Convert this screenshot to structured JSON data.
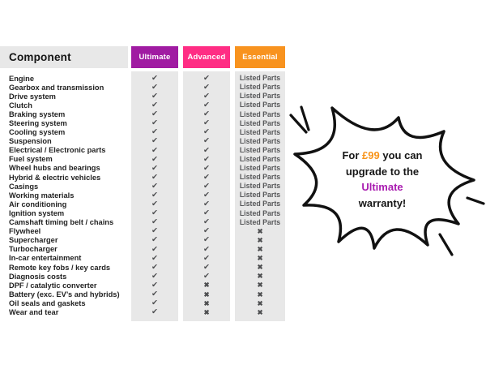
{
  "colors": {
    "ultimate_purple": "#A01BA2",
    "advanced_pink": "#FF2D84",
    "essential_orange": "#F8931F",
    "burst_price_orange": "#F8941A",
    "burst_ultimate_purple": "#A91CB0",
    "column_stripe_gray": "#E8E8E8",
    "mark_gray": "#4D4E50",
    "text_dark": "#161616"
  },
  "table": {
    "header": {
      "component": "Component",
      "plans": [
        {
          "label": "Ultimate",
          "color": "#A01BA2"
        },
        {
          "label": "Advanced",
          "color": "#FF2D84"
        },
        {
          "label": "Essential",
          "color": "#F8931F"
        }
      ]
    },
    "listed_label": "Listed Parts",
    "check_symbol": "✔",
    "cross_symbol": "✖",
    "rows": [
      {
        "component": "Engine",
        "ultimate": "check",
        "advanced": "check",
        "essential": "listed"
      },
      {
        "component": "Gearbox and transmission",
        "ultimate": "check",
        "advanced": "check",
        "essential": "listed"
      },
      {
        "component": "Drive system",
        "ultimate": "check",
        "advanced": "check",
        "essential": "listed"
      },
      {
        "component": "Clutch",
        "ultimate": "check",
        "advanced": "check",
        "essential": "listed"
      },
      {
        "component": "Braking system",
        "ultimate": "check",
        "advanced": "check",
        "essential": "listed"
      },
      {
        "component": "Steering system",
        "ultimate": "check",
        "advanced": "check",
        "essential": "listed"
      },
      {
        "component": "Cooling system",
        "ultimate": "check",
        "advanced": "check",
        "essential": "listed"
      },
      {
        "component": "Suspension",
        "ultimate": "check",
        "advanced": "check",
        "essential": "listed"
      },
      {
        "component": "Electrical / Electronic parts",
        "ultimate": "check",
        "advanced": "check",
        "essential": "listed"
      },
      {
        "component": "Fuel system",
        "ultimate": "check",
        "advanced": "check",
        "essential": "listed"
      },
      {
        "component": "Wheel hubs and bearings",
        "ultimate": "check",
        "advanced": "check",
        "essential": "listed"
      },
      {
        "component": "Hybrid & electric vehicles",
        "ultimate": "check",
        "advanced": "check",
        "essential": "listed"
      },
      {
        "component": "Casings",
        "ultimate": "check",
        "advanced": "check",
        "essential": "listed"
      },
      {
        "component": "Working materials",
        "ultimate": "check",
        "advanced": "check",
        "essential": "listed"
      },
      {
        "component": "Air conditioning",
        "ultimate": "check",
        "advanced": "check",
        "essential": "listed"
      },
      {
        "component": "Ignition system",
        "ultimate": "check",
        "advanced": "check",
        "essential": "listed"
      },
      {
        "component": "Camshaft timing belt / chains",
        "ultimate": "check",
        "advanced": "check",
        "essential": "listed"
      },
      {
        "component": "Flywheel",
        "ultimate": "check",
        "advanced": "check",
        "essential": "cross"
      },
      {
        "component": "Supercharger",
        "ultimate": "check",
        "advanced": "check",
        "essential": "cross"
      },
      {
        "component": "Turbocharger",
        "ultimate": "check",
        "advanced": "check",
        "essential": "cross"
      },
      {
        "component": "In-car entertainment",
        "ultimate": "check",
        "advanced": "check",
        "essential": "cross"
      },
      {
        "component": "Remote key fobs / key cards",
        "ultimate": "check",
        "advanced": "check",
        "essential": "cross"
      },
      {
        "component": "Diagnosis costs",
        "ultimate": "check",
        "advanced": "check",
        "essential": "cross"
      },
      {
        "component": "DPF / catalytic converter",
        "ultimate": "check",
        "advanced": "cross",
        "essential": "cross"
      },
      {
        "component": "Battery (exc. EV’s and hybrids)",
        "ultimate": "check",
        "advanced": "cross",
        "essential": "cross"
      },
      {
        "component": "Oil seals and gaskets",
        "ultimate": "check",
        "advanced": "cross",
        "essential": "cross"
      },
      {
        "component": "Wear and tear",
        "ultimate": "check",
        "advanced": "cross",
        "essential": "cross"
      }
    ]
  },
  "burst": {
    "lines": [
      {
        "segments": [
          {
            "t": "For ",
            "c": "dark"
          },
          {
            "t": "£99",
            "c": "orange"
          },
          {
            "t": " you can",
            "c": "dark"
          }
        ]
      },
      {
        "segments": [
          {
            "t": "upgrade to the",
            "c": "dark"
          }
        ]
      },
      {
        "segments": [
          {
            "t": "Ultimate",
            "c": "purple"
          }
        ]
      },
      {
        "segments": [
          {
            "t": "warranty!",
            "c": "dark"
          }
        ]
      }
    ]
  }
}
